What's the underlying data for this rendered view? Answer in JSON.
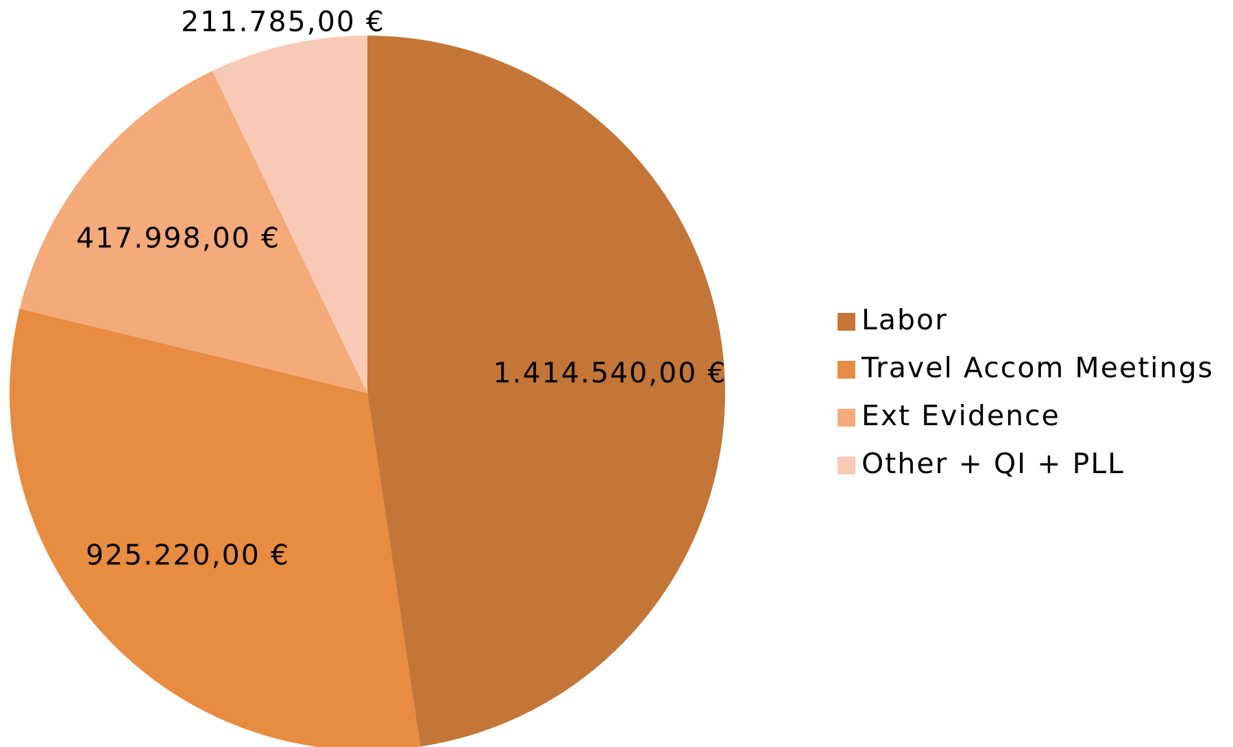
{
  "chart_data": {
    "type": "pie",
    "categories": [
      "Labor",
      "Travel Accom Meetings",
      "Ext Evidence",
      "Other + QI + PLL"
    ],
    "values": [
      1414540,
      925220,
      417998,
      211785
    ],
    "value_labels": [
      "1.414.540,00 €",
      "925.220,00 €",
      "417.998,00 €",
      "211.785,00 €"
    ],
    "colors": [
      "#c37637",
      "#e88c42",
      "#f5aa7a",
      "#f8cab5"
    ],
    "legend": "right"
  }
}
